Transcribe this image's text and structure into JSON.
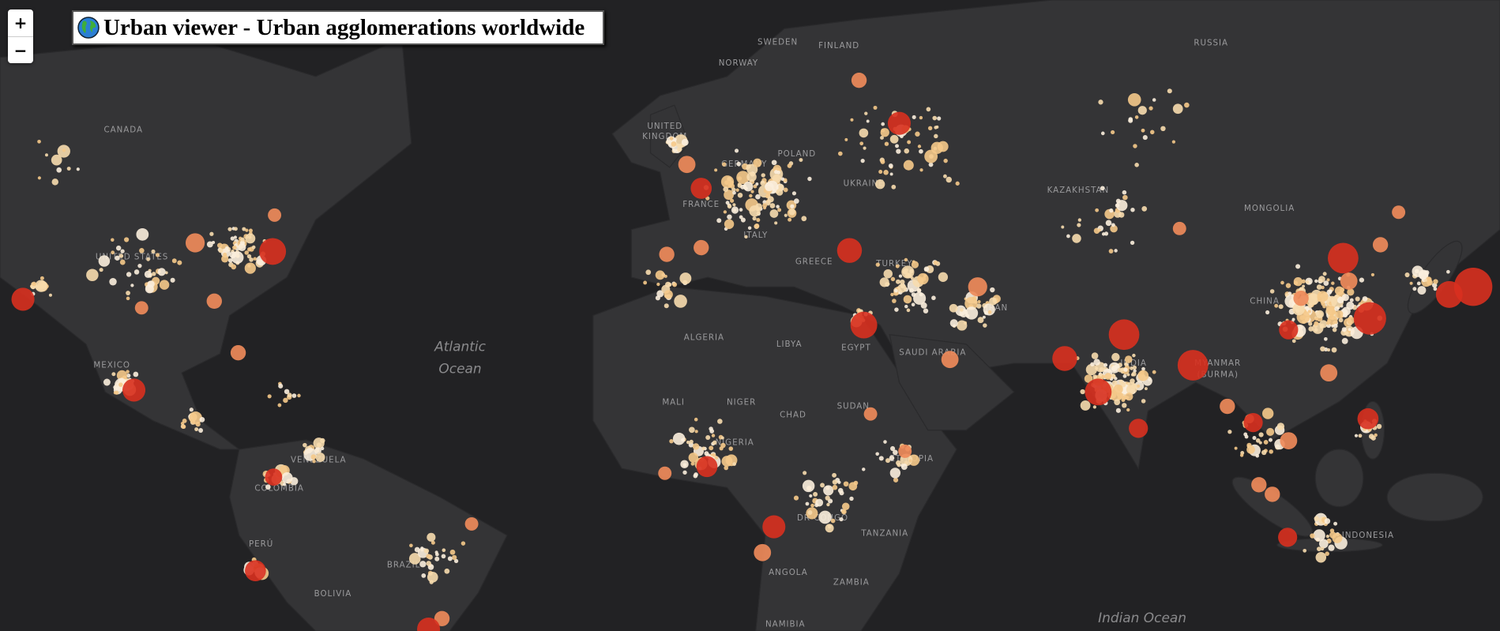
{
  "header": {
    "title": "Urban viewer - Urban agglomerations worldwide"
  },
  "zoom_controls": {
    "zoom_in": "+",
    "zoom_out": "−"
  },
  "map_labels": {
    "countries": [
      "SWEDEN",
      "FINLAND",
      "RUSSIA",
      "NORWAY",
      "CANADA",
      "UNITED",
      "KINGDOM",
      "POLAND",
      "GERMANY",
      "UKRAINE",
      "KAZAKHSTAN",
      "FRANCE",
      "MONGOLIA",
      "ITALY",
      "UNITED STATES",
      "GREECE",
      "TURKEY",
      "CHINA",
      "IRAN",
      "ALGERIA",
      "LIBYA",
      "EGYPT",
      "SAUDI ARABIA",
      "MEXICO",
      "INDIA",
      "MYANMAR",
      "(BURMA)",
      "MALI",
      "NIGER",
      "CHAD",
      "SUDAN",
      "NIGERIA",
      "VENEZUELA",
      "ETHIOPIA",
      "COLOMBIA",
      "DR CONGO",
      "TANZANIA",
      "INDONESIA",
      "PERÚ",
      "BRAZIL",
      "ANGOLA",
      "ZAMBIA",
      "BOLIVIA",
      "NAMIBIA"
    ],
    "oceans": [
      "Atlantic",
      "Ocean",
      "Indian Ocean"
    ]
  }
}
